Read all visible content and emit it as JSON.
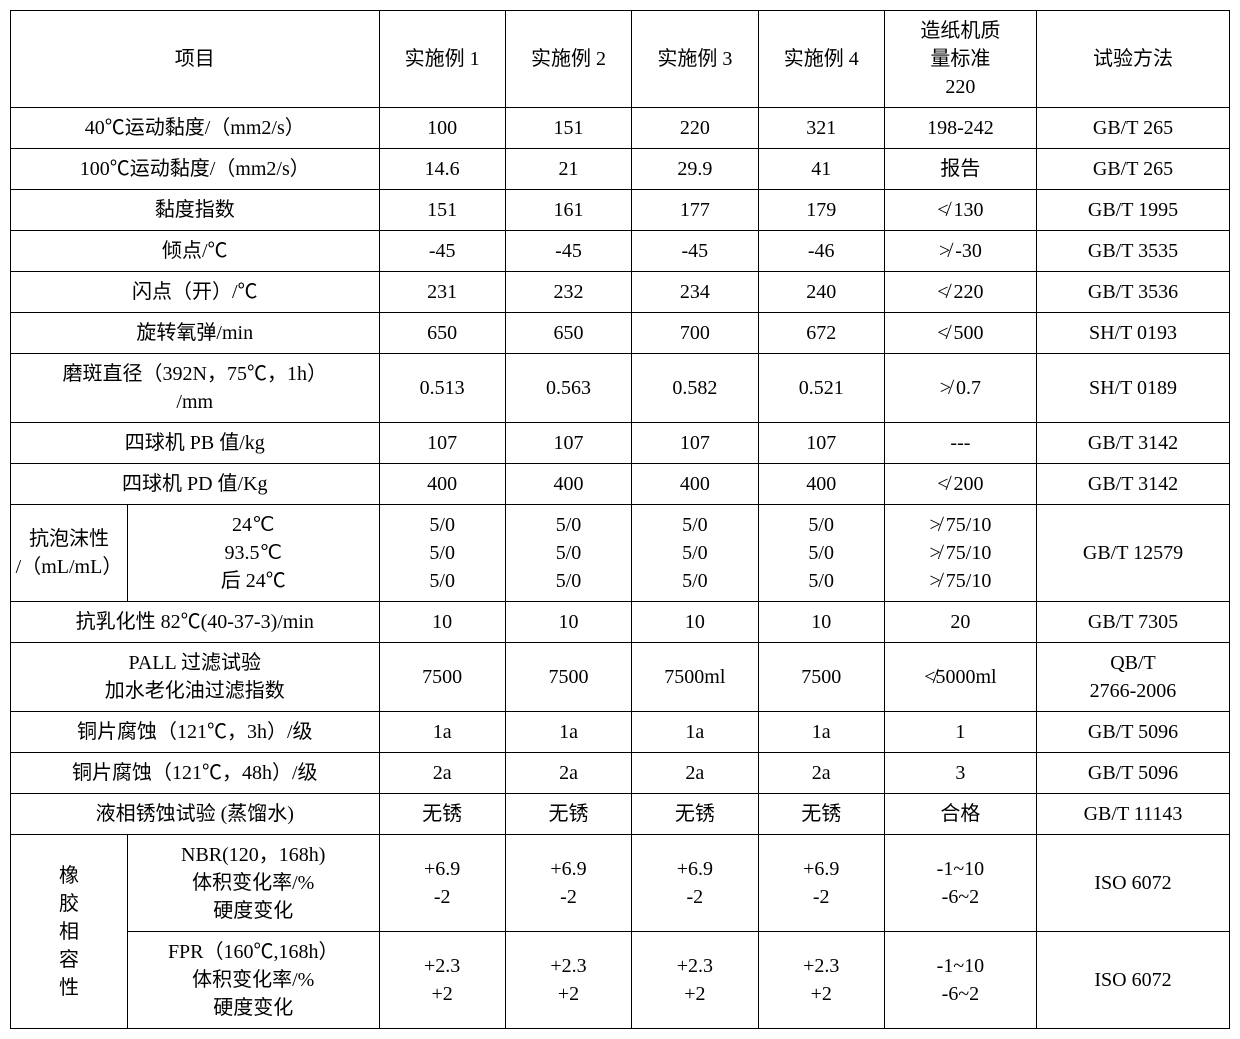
{
  "header": {
    "item": "项目",
    "ex1": "实施例 1",
    "ex2": "实施例 2",
    "ex3": "实施例 3",
    "ex4": "实施例 4",
    "std": "造纸机质\n量标准\n220",
    "method": "试验方法"
  },
  "rows": [
    {
      "item": "40℃运动黏度/（mm2/s）",
      "ex1": "100",
      "ex2": "151",
      "ex3": "220",
      "ex4": "321",
      "std": "198-242",
      "method": "GB/T 265"
    },
    {
      "item": "100℃运动黏度/（mm2/s）",
      "ex1": "14.6",
      "ex2": "21",
      "ex3": "29.9",
      "ex4": "41",
      "std": "报告",
      "method": "GB/T 265"
    },
    {
      "item": "黏度指数",
      "ex1": "151",
      "ex2": "161",
      "ex3": "177",
      "ex4": "179",
      "std": "≮ 130",
      "method": "GB/T 1995"
    },
    {
      "item": "倾点/℃",
      "ex1": "-45",
      "ex2": "-45",
      "ex3": "-45",
      "ex4": "-46",
      "std": "≯ -30",
      "method": "GB/T 3535"
    },
    {
      "item": "闪点（开）/℃",
      "ex1": "231",
      "ex2": "232",
      "ex3": "234",
      "ex4": "240",
      "std": "≮ 220",
      "method": "GB/T 3536"
    },
    {
      "item": "旋转氧弹/min",
      "ex1": "650",
      "ex2": "650",
      "ex3": "700",
      "ex4": "672",
      "std": "≮ 500",
      "method": "SH/T 0193"
    },
    {
      "item": "磨斑直径（392N，75℃，1h）\n/mm",
      "ex1": "0.513",
      "ex2": "0.563",
      "ex3": "0.582",
      "ex4": "0.521",
      "std": "≯ 0.7",
      "method": "SH/T 0189"
    },
    {
      "item": "四球机 PB 值/kg",
      "ex1": "107",
      "ex2": "107",
      "ex3": "107",
      "ex4": "107",
      "std": "---",
      "method": "GB/T 3142"
    },
    {
      "item": "四球机 PD 值/Kg",
      "ex1": "400",
      "ex2": "400",
      "ex3": "400",
      "ex4": "400",
      "std": "≮ 200",
      "method": "GB/T 3142"
    }
  ],
  "foam": {
    "label": "抗泡沫性\n/（mL/mL）",
    "cond": "24℃\n93.5℃\n后 24℃",
    "ex1": "5/0\n5/0\n5/0",
    "ex2": "5/0\n5/0\n5/0",
    "ex3": "5/0\n5/0\n5/0",
    "ex4": "5/0\n5/0\n5/0",
    "std": "≯ 75/10\n≯ 75/10\n≯ 75/10",
    "method": "GB/T 12579"
  },
  "rows2": [
    {
      "item": "抗乳化性 82℃(40-37-3)/min",
      "ex1": "10",
      "ex2": "10",
      "ex3": "10",
      "ex4": "10",
      "std": "20",
      "method": "GB/T 7305"
    },
    {
      "item": "PALL 过滤试验\n加水老化油过滤指数",
      "ex1": "7500",
      "ex2": "7500",
      "ex3": "7500ml",
      "ex4": "7500",
      "std": "≮5000ml",
      "method": "QB/T\n2766-2006"
    },
    {
      "item": "铜片腐蚀（121℃，3h）/级",
      "ex1": "1a",
      "ex2": "1a",
      "ex3": "1a",
      "ex4": "1a",
      "std": "1",
      "method": "GB/T 5096"
    },
    {
      "item": "铜片腐蚀（121℃，48h）/级",
      "ex1": "2a",
      "ex2": "2a",
      "ex3": "2a",
      "ex4": "2a",
      "std": "3",
      "method": "GB/T 5096"
    },
    {
      "item": "液相锈蚀试验 (蒸馏水)",
      "ex1": "无锈",
      "ex2": "无锈",
      "ex3": "无锈",
      "ex4": "无锈",
      "std": "合格",
      "method": "GB/T 11143"
    }
  ],
  "rubber": {
    "label": "橡\n胶\n相\n容\n性",
    "nbr": {
      "cond": "NBR(120，168h)\n体积变化率/%\n硬度变化",
      "ex1": "+6.9\n-2",
      "ex2": "+6.9\n-2",
      "ex3": "+6.9\n-2",
      "ex4": "+6.9\n-2",
      "std": "-1~10\n-6~2",
      "method": "ISO 6072"
    },
    "fpr": {
      "cond": "FPR（160℃,168h）\n体积变化率/%\n硬度变化",
      "ex1": "+2.3\n+2",
      "ex2": "+2.3\n+2",
      "ex3": "+2.3\n+2",
      "ex4": "+2.3\n+2",
      "std": "-1~10\n-6~2",
      "method": "ISO 6072"
    }
  }
}
